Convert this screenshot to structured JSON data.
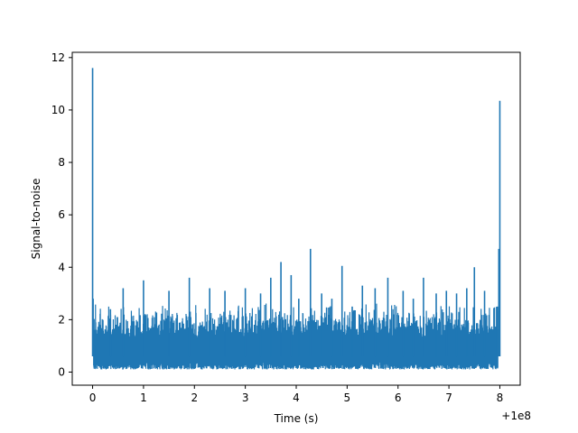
{
  "chart_data": {
    "type": "line",
    "title": "",
    "xlabel": "Time (s)",
    "ylabel": "Signal-to-noise",
    "x_offset_label": "+1e8",
    "xlim": [
      -0.4,
      8.4
    ],
    "ylim": [
      -0.5,
      12.2
    ],
    "x_ticks": [
      0,
      1,
      2,
      3,
      4,
      5,
      6,
      7,
      8
    ],
    "y_ticks": [
      0,
      2,
      4,
      6,
      8,
      10,
      12
    ],
    "grid": false,
    "legend": "none",
    "line_color": "#1f77b4",
    "series": [
      {
        "x": [
          0.0,
          0.01,
          0.03,
          0.35,
          0.6,
          1.0,
          1.5,
          1.9,
          2.3,
          2.6,
          3.0,
          3.3,
          3.5,
          3.7,
          3.9,
          4.05,
          4.28,
          4.5,
          4.7,
          4.9,
          5.1,
          5.3,
          5.55,
          5.8,
          6.1,
          6.3,
          6.5,
          6.75,
          6.95,
          7.15,
          7.35,
          7.5,
          7.7,
          7.95,
          7.98,
          8.0
        ],
        "y": [
          11.6,
          2.8,
          1.0,
          2.4,
          3.2,
          3.5,
          3.1,
          3.6,
          3.2,
          3.1,
          3.2,
          3.0,
          3.6,
          4.2,
          3.7,
          2.8,
          4.7,
          3.0,
          2.8,
          4.05,
          2.5,
          3.3,
          3.2,
          3.6,
          3.1,
          2.8,
          3.6,
          3.0,
          3.1,
          3.0,
          3.2,
          4.0,
          3.1,
          2.5,
          4.7,
          10.35
        ]
      }
    ]
  }
}
